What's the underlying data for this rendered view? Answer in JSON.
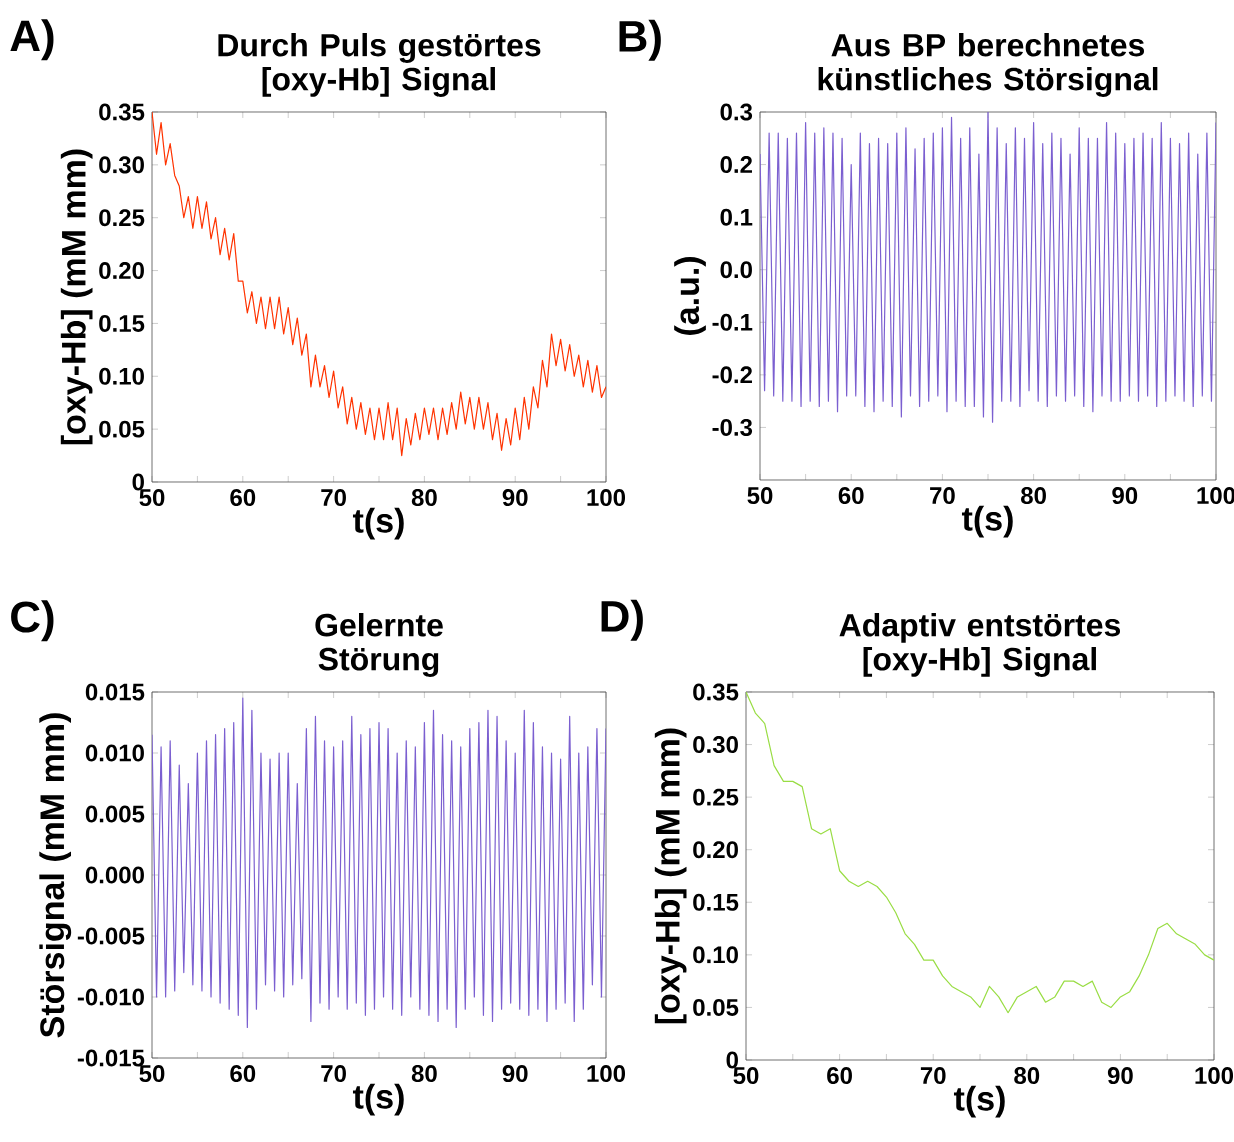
{
  "chart_data": [
    {
      "type": "line",
      "title": "Durch Puls gestörtes [oxy-Hb] Signal",
      "xlabel": "t(s)",
      "ylabel": "[oxy-Hb] (mM mm)",
      "annotations": [
        "A)"
      ],
      "color": "#ff3300",
      "x": [
        50,
        50.5,
        51,
        51.5,
        52,
        52.5,
        53,
        53.5,
        54,
        54.5,
        55,
        55.5,
        56,
        56.5,
        57,
        57.5,
        58,
        58.5,
        59,
        59.5,
        60,
        60.5,
        61,
        61.5,
        62,
        62.5,
        63,
        63.5,
        64,
        64.5,
        65,
        65.5,
        66,
        66.5,
        67,
        67.5,
        68,
        68.5,
        69,
        69.5,
        70,
        70.5,
        71,
        71.5,
        72,
        72.5,
        73,
        73.5,
        74,
        74.5,
        75,
        75.5,
        76,
        76.5,
        77,
        77.5,
        78,
        78.5,
        79,
        79.5,
        80,
        80.5,
        81,
        81.5,
        82,
        82.5,
        83,
        83.5,
        84,
        84.5,
        85,
        85.5,
        86,
        86.5,
        87,
        87.5,
        88,
        88.5,
        89,
        89.5,
        90,
        90.5,
        91,
        91.5,
        92,
        92.5,
        93,
        93.5,
        94,
        94.5,
        95,
        95.5,
        96,
        96.5,
        97,
        97.5,
        98,
        98.5,
        99,
        99.5,
        100
      ],
      "values": [
        0.35,
        0.31,
        0.34,
        0.3,
        0.32,
        0.29,
        0.28,
        0.25,
        0.27,
        0.24,
        0.27,
        0.24,
        0.265,
        0.23,
        0.25,
        0.215,
        0.24,
        0.21,
        0.235,
        0.19,
        0.19,
        0.16,
        0.18,
        0.15,
        0.175,
        0.145,
        0.175,
        0.145,
        0.175,
        0.14,
        0.165,
        0.13,
        0.155,
        0.12,
        0.14,
        0.09,
        0.12,
        0.09,
        0.11,
        0.08,
        0.105,
        0.07,
        0.09,
        0.055,
        0.08,
        0.05,
        0.075,
        0.045,
        0.07,
        0.04,
        0.07,
        0.04,
        0.075,
        0.04,
        0.07,
        0.025,
        0.06,
        0.035,
        0.065,
        0.04,
        0.07,
        0.045,
        0.07,
        0.04,
        0.07,
        0.045,
        0.075,
        0.05,
        0.085,
        0.055,
        0.08,
        0.05,
        0.08,
        0.05,
        0.075,
        0.04,
        0.065,
        0.03,
        0.06,
        0.035,
        0.07,
        0.04,
        0.08,
        0.05,
        0.09,
        0.07,
        0.115,
        0.09,
        0.14,
        0.11,
        0.135,
        0.105,
        0.13,
        0.1,
        0.12,
        0.09,
        0.115,
        0.085,
        0.11,
        0.08,
        0.09
      ],
      "xlim": [
        50,
        100
      ],
      "ylim": [
        0,
        0.35
      ],
      "xticks": [
        50,
        {
          "value": 55,
          "label": null
        },
        60,
        {
          "value": 65,
          "label": null
        },
        70,
        {
          "value": 75,
          "label": null
        },
        80,
        {
          "value": 85,
          "label": null
        },
        90,
        {
          "value": 95,
          "label": null
        },
        100
      ],
      "yticks": [
        {
          "value": 0,
          "label": "0"
        },
        {
          "value": 0.05,
          "label": "0.05"
        },
        {
          "value": 0.1,
          "label": "0.10"
        },
        {
          "value": 0.15,
          "label": "0.15"
        },
        {
          "value": 0.2,
          "label": "0.20"
        },
        {
          "value": 0.25,
          "label": "0.25"
        },
        {
          "value": 0.3,
          "label": "0.30"
        },
        {
          "value": 0.35,
          "label": "0.35"
        }
      ]
    },
    {
      "type": "line",
      "title": "Aus BP berechnetes künstliches Störsignal",
      "xlabel": "t(s)",
      "ylabel": "(a.u.)",
      "annotations": [
        "B)"
      ],
      "color": "#7b5fd0",
      "x": [
        50,
        50.5,
        51,
        51.5,
        52,
        52.5,
        53,
        53.5,
        54,
        54.5,
        55,
        55.5,
        56,
        56.5,
        57,
        57.5,
        58,
        58.5,
        59,
        59.5,
        60,
        60.5,
        61,
        61.5,
        62,
        62.5,
        63,
        63.5,
        64,
        64.5,
        65,
        65.5,
        66,
        66.5,
        67,
        67.5,
        68,
        68.5,
        69,
        69.5,
        70,
        70.5,
        71,
        71.5,
        72,
        72.5,
        73,
        73.5,
        74,
        74.5,
        75,
        75.5,
        76,
        76.5,
        77,
        77.5,
        78,
        78.5,
        79,
        79.5,
        80,
        80.5,
        81,
        81.5,
        82,
        82.5,
        83,
        83.5,
        84,
        84.5,
        85,
        85.5,
        86,
        86.5,
        87,
        87.5,
        88,
        88.5,
        89,
        89.5,
        90,
        90.5,
        91,
        91.5,
        92,
        92.5,
        93,
        93.5,
        94,
        94.5,
        95,
        95.5,
        96,
        96.5,
        97,
        97.5,
        98,
        98.5,
        99,
        99.5,
        100
      ],
      "values": [
        0.22,
        -0.23,
        0.26,
        -0.24,
        0.26,
        -0.25,
        0.25,
        -0.25,
        0.26,
        -0.26,
        0.28,
        -0.25,
        0.26,
        -0.26,
        0.27,
        -0.25,
        0.26,
        -0.27,
        0.25,
        -0.24,
        0.2,
        -0.24,
        0.26,
        -0.26,
        0.24,
        -0.27,
        0.25,
        -0.25,
        0.24,
        -0.26,
        0.26,
        -0.28,
        0.27,
        -0.24,
        0.23,
        -0.26,
        0.25,
        -0.25,
        0.26,
        -0.24,
        0.27,
        -0.27,
        0.29,
        -0.25,
        0.25,
        -0.26,
        0.27,
        -0.26,
        0.22,
        -0.28,
        0.3,
        -0.29,
        0.27,
        -0.25,
        0.24,
        -0.25,
        0.27,
        -0.26,
        0.25,
        -0.23,
        0.28,
        -0.25,
        0.24,
        -0.26,
        0.26,
        -0.24,
        0.25,
        -0.25,
        0.22,
        -0.24,
        0.27,
        -0.26,
        0.25,
        -0.27,
        0.25,
        -0.24,
        0.28,
        -0.25,
        0.26,
        -0.25,
        0.24,
        -0.24,
        0.25,
        -0.25,
        0.26,
        -0.24,
        0.25,
        -0.26,
        0.28,
        -0.25,
        0.25,
        -0.24,
        0.24,
        -0.25,
        0.26,
        -0.26,
        0.22,
        -0.24,
        0.26,
        -0.25,
        0.28
      ],
      "xlim": [
        50,
        100
      ],
      "ylim": [
        -0.4,
        0.3
      ],
      "xticks": [
        50,
        {
          "value": 55,
          "label": null
        },
        60,
        {
          "value": 65,
          "label": null
        },
        70,
        {
          "value": 75,
          "label": null
        },
        80,
        {
          "value": 85,
          "label": null
        },
        90,
        {
          "value": 95,
          "label": null
        },
        100
      ],
      "yticks": [
        -0.3,
        -0.2,
        -0.1,
        {
          "value": 0,
          "label": "0.0"
        },
        0.1,
        0.2,
        0.3
      ]
    },
    {
      "type": "line",
      "title": "Gelernte Störung",
      "xlabel": "t(s)",
      "ylabel": "Störsignal (mM mm)",
      "annotations": [
        "C)"
      ],
      "color": "#7b5fd0",
      "x": [
        50,
        50.5,
        51,
        51.5,
        52,
        52.5,
        53,
        53.5,
        54,
        54.5,
        55,
        55.5,
        56,
        56.5,
        57,
        57.5,
        58,
        58.5,
        59,
        59.5,
        60,
        60.5,
        61,
        61.5,
        62,
        62.5,
        63,
        63.5,
        64,
        64.5,
        65,
        65.5,
        66,
        66.5,
        67,
        67.5,
        68,
        68.5,
        69,
        69.5,
        70,
        70.5,
        71,
        71.5,
        72,
        72.5,
        73,
        73.5,
        74,
        74.5,
        75,
        75.5,
        76,
        76.5,
        77,
        77.5,
        78,
        78.5,
        79,
        79.5,
        80,
        80.5,
        81,
        81.5,
        82,
        82.5,
        83,
        83.5,
        84,
        84.5,
        85,
        85.5,
        86,
        86.5,
        87,
        87.5,
        88,
        88.5,
        89,
        89.5,
        90,
        90.5,
        91,
        91.5,
        92,
        92.5,
        93,
        93.5,
        94,
        94.5,
        95,
        95.5,
        96,
        96.5,
        97,
        97.5,
        98,
        98.5,
        99,
        99.5,
        100
      ],
      "values": [
        0.0115,
        -0.01,
        0.0105,
        -0.01,
        0.011,
        -0.0095,
        0.009,
        -0.008,
        0.0075,
        -0.009,
        0.01,
        -0.0095,
        0.011,
        -0.01,
        0.0115,
        -0.0105,
        0.012,
        -0.011,
        0.0125,
        -0.0115,
        0.0145,
        -0.0125,
        0.0135,
        -0.011,
        0.01,
        -0.009,
        0.0095,
        -0.0095,
        0.01,
        -0.01,
        0.01,
        -0.009,
        0.0075,
        -0.0085,
        0.012,
        -0.012,
        0.013,
        -0.0105,
        0.011,
        -0.011,
        0.0105,
        -0.01,
        0.011,
        -0.011,
        0.013,
        -0.0105,
        0.0115,
        -0.0115,
        0.012,
        -0.011,
        0.0125,
        -0.01,
        0.012,
        -0.011,
        0.01,
        -0.0115,
        0.011,
        -0.01,
        0.0105,
        -0.011,
        0.0125,
        -0.0115,
        0.0135,
        -0.012,
        0.0115,
        -0.011,
        0.011,
        -0.0125,
        0.0105,
        -0.011,
        0.012,
        -0.01,
        0.0125,
        -0.0115,
        0.0135,
        -0.012,
        0.013,
        -0.011,
        0.011,
        -0.0105,
        0.01,
        -0.011,
        0.0135,
        -0.0115,
        0.0125,
        -0.011,
        0.0105,
        -0.012,
        0.01,
        -0.011,
        0.0095,
        -0.0105,
        0.013,
        -0.012,
        0.01,
        -0.011,
        0.0105,
        -0.009,
        0.012,
        -0.01,
        0.012
      ],
      "xlim": [
        50,
        100
      ],
      "ylim": [
        -0.015,
        0.015
      ],
      "xticks": [
        50,
        {
          "value": 55,
          "label": null
        },
        60,
        {
          "value": 65,
          "label": null
        },
        70,
        {
          "value": 75,
          "label": null
        },
        80,
        {
          "value": 85,
          "label": null
        },
        90,
        {
          "value": 95,
          "label": null
        },
        100
      ],
      "yticks": [
        {
          "value": -0.015,
          "label": "-0.015"
        },
        {
          "value": -0.01,
          "label": "-0.010"
        },
        {
          "value": -0.005,
          "label": "-0.005"
        },
        {
          "value": 0,
          "label": "0.000"
        },
        {
          "value": 0.005,
          "label": "0.005"
        },
        {
          "value": 0.01,
          "label": "0.010"
        },
        {
          "value": 0.015,
          "label": "0.015"
        }
      ]
    },
    {
      "type": "line",
      "title": "Adaptiv entstörtes [oxy-Hb] Signal",
      "xlabel": "t(s)",
      "ylabel": "[oxy-Hb] (mM mm)",
      "annotations": [
        "D)"
      ],
      "color": "#99dd44",
      "x": [
        50,
        51,
        52,
        53,
        54,
        55,
        56,
        57,
        58,
        59,
        60,
        61,
        62,
        63,
        64,
        65,
        66,
        67,
        68,
        69,
        70,
        71,
        72,
        73,
        74,
        75,
        76,
        77,
        78,
        79,
        80,
        81,
        82,
        83,
        84,
        85,
        86,
        87,
        88,
        89,
        90,
        91,
        92,
        93,
        94,
        95,
        96,
        97,
        98,
        99,
        100
      ],
      "values": [
        0.35,
        0.33,
        0.32,
        0.28,
        0.265,
        0.265,
        0.26,
        0.22,
        0.215,
        0.22,
        0.18,
        0.17,
        0.165,
        0.17,
        0.165,
        0.155,
        0.14,
        0.12,
        0.11,
        0.095,
        0.095,
        0.08,
        0.07,
        0.065,
        0.06,
        0.05,
        0.07,
        0.06,
        0.045,
        0.06,
        0.065,
        0.07,
        0.055,
        0.06,
        0.075,
        0.075,
        0.07,
        0.075,
        0.055,
        0.05,
        0.06,
        0.065,
        0.08,
        0.1,
        0.125,
        0.13,
        0.12,
        0.115,
        0.11,
        0.1,
        0.095
      ],
      "xlim": [
        50,
        100
      ],
      "ylim": [
        0,
        0.35
      ],
      "xticks": [
        50,
        {
          "value": 55,
          "label": null
        },
        60,
        {
          "value": 65,
          "label": null
        },
        70,
        {
          "value": 75,
          "label": null
        },
        80,
        {
          "value": 85,
          "label": null
        },
        90,
        {
          "value": 95,
          "label": null
        },
        100
      ],
      "yticks": [
        {
          "value": 0,
          "label": "0"
        },
        {
          "value": 0.05,
          "label": "0.05"
        },
        {
          "value": 0.1,
          "label": "0.10"
        },
        {
          "value": 0.15,
          "label": "0.15"
        },
        {
          "value": 0.2,
          "label": "0.20"
        },
        {
          "value": 0.25,
          "label": "0.25"
        },
        {
          "value": 0.3,
          "label": "0.30"
        },
        {
          "value": 0.35,
          "label": "0.35"
        }
      ]
    }
  ]
}
